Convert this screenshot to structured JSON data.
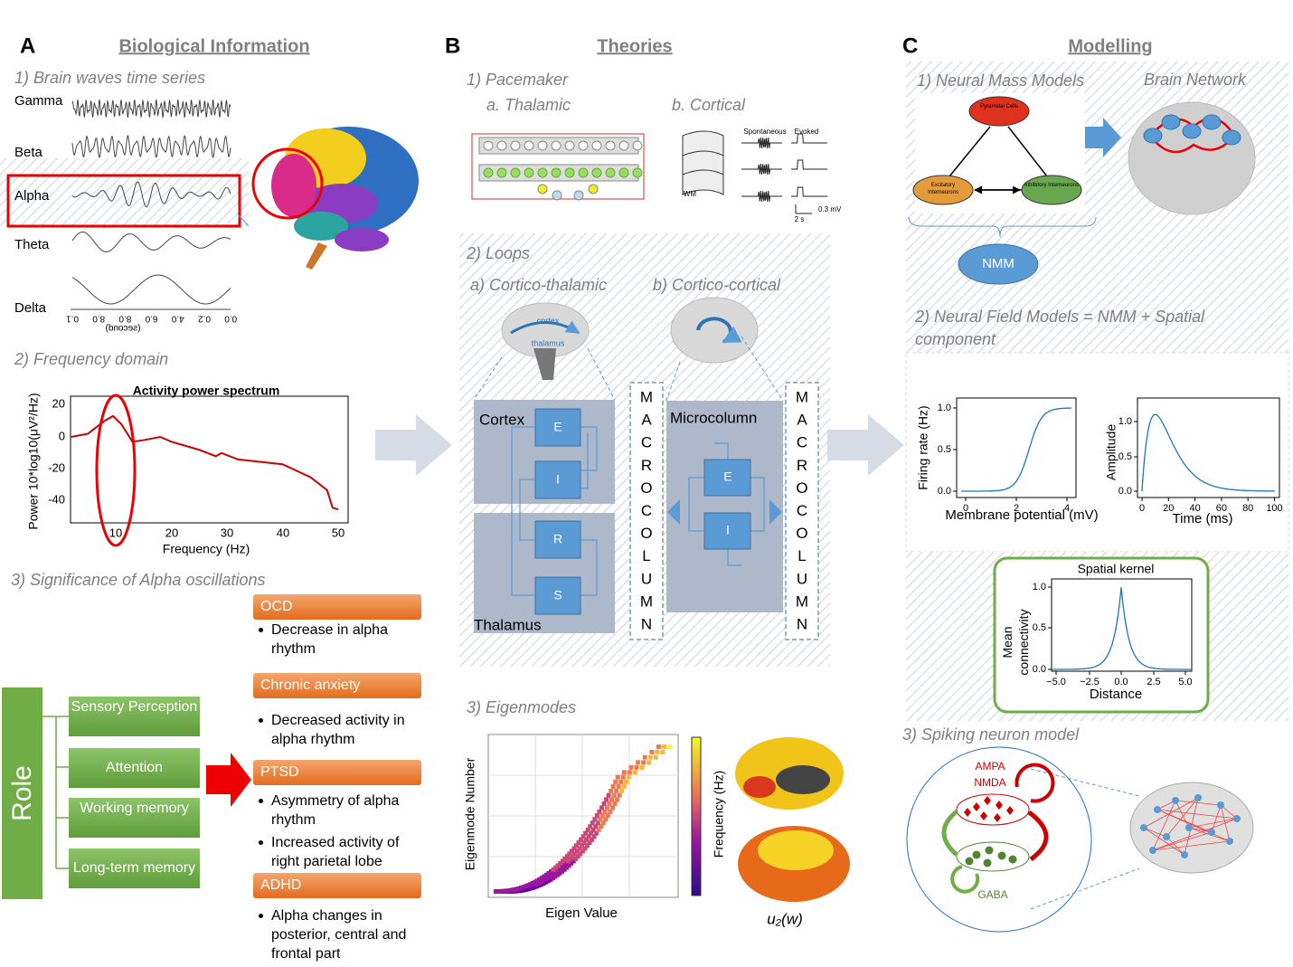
{
  "panel_a": {
    "letter": "A",
    "title": "Biological Information",
    "section1": {
      "title": "1) Brain waves time series",
      "waves": [
        "Gamma",
        "Beta",
        "Alpha",
        "Theta",
        "Delta"
      ],
      "time_ticks": [
        "0.1",
        "8.0",
        "8.0",
        "6.0",
        "4.0",
        "0.2",
        "0.0"
      ],
      "time_label": "(second)"
    },
    "section2": {
      "title": "2) Frequency domain",
      "plot_title": "Activity power spectrum",
      "ylabel": "Power 10*log10(μV²/Hz)",
      "xlabel": "Frequency (Hz)",
      "yticks": [
        "20",
        "0",
        "-20",
        "-40"
      ],
      "xticks": [
        "10",
        "20",
        "30",
        "40",
        "50"
      ]
    },
    "section3": {
      "title": "3) Significance of Alpha oscillations",
      "role": "Role",
      "functions": [
        "Sensory Perception",
        "Attention",
        "Working memory",
        "Long-term memory"
      ],
      "disorders": [
        {
          "name": "OCD",
          "notes": [
            "Decrease in alpha rhythm"
          ]
        },
        {
          "name": "Chronic anxiety",
          "notes": [
            "Decreased activity in alpha rhythm"
          ]
        },
        {
          "name": "PTSD",
          "notes": [
            "Asymmetry of alpha rhythm",
            "Increased activity of right parietal lobe"
          ]
        },
        {
          "name": "ADHD",
          "notes": [
            "Alpha changes in posterior, central and frontal part"
          ]
        }
      ]
    }
  },
  "panel_b": {
    "letter": "B",
    "title": "Theories",
    "section1": {
      "title": "1) Pacemaker",
      "a": "a. Thalamic",
      "b": "b. Cortical",
      "cortical_labels": [
        "Spontaneous",
        "Evoked",
        "WM",
        "2 s",
        "0.3 mV"
      ]
    },
    "section2": {
      "title": "2) Loops",
      "a": "a) Cortico-thalamic",
      "b": "b) Cortico-cortical",
      "brain_labels": [
        "cortex",
        "thalamus"
      ],
      "cortex": "Cortex",
      "thalamus": "Thalamus",
      "ct_nodes": [
        "E",
        "I",
        "R",
        "S"
      ],
      "microcolumn": "Microcolumn",
      "mc_nodes": [
        "E",
        "I"
      ],
      "macrocolumn": [
        "M",
        "A",
        "C",
        "R",
        "O",
        "C",
        "O",
        "L",
        "U",
        "M",
        "N"
      ]
    },
    "section3": {
      "title": "3) Eigenmodes",
      "ylabel": "Eigenmode Number",
      "xlabel": "Eigen Value",
      "colorbar": "Frequency (Hz)",
      "mode_label": "u₂(w)"
    }
  },
  "panel_c": {
    "letter": "C",
    "title": "Modelling",
    "section1": {
      "title": "1) Neural Mass Models",
      "network": "Brain Network",
      "nodes": [
        "Pyramidal Cells",
        "Excitatory Interneurons",
        "Inhibitory Interneurons"
      ],
      "nmm": "NMM"
    },
    "section2": {
      "title": "2) Neural Field Models = NMM + Spatial component",
      "firing": {
        "ylabel": "Firing rate (Hz)",
        "xlabel": "Membrane potential (mV)",
        "xticks": [
          "0",
          "2",
          "4"
        ],
        "yticks": [
          "0.0",
          "0.5",
          "1.0"
        ]
      },
      "amplitude": {
        "ylabel": "Amplitude",
        "xlabel": "Time (ms)",
        "xticks": [
          "0",
          "20",
          "40",
          "60",
          "80",
          "100"
        ],
        "yticks": [
          "0.0",
          "0.5",
          "1.0"
        ]
      },
      "kernel": {
        "title": "Spatial kernel",
        "ylabel": "Mean connectivity",
        "xlabel": "Distance",
        "xticks": [
          "−5.0",
          "−2.5",
          "0.0",
          "2.5",
          "5.0"
        ],
        "yticks": [
          "0.0",
          "0.5",
          "1.0"
        ]
      }
    },
    "section3": {
      "title": "3) Spiking neuron model",
      "labels": [
        "AMPA",
        "NMDA",
        "GABA"
      ]
    }
  }
}
